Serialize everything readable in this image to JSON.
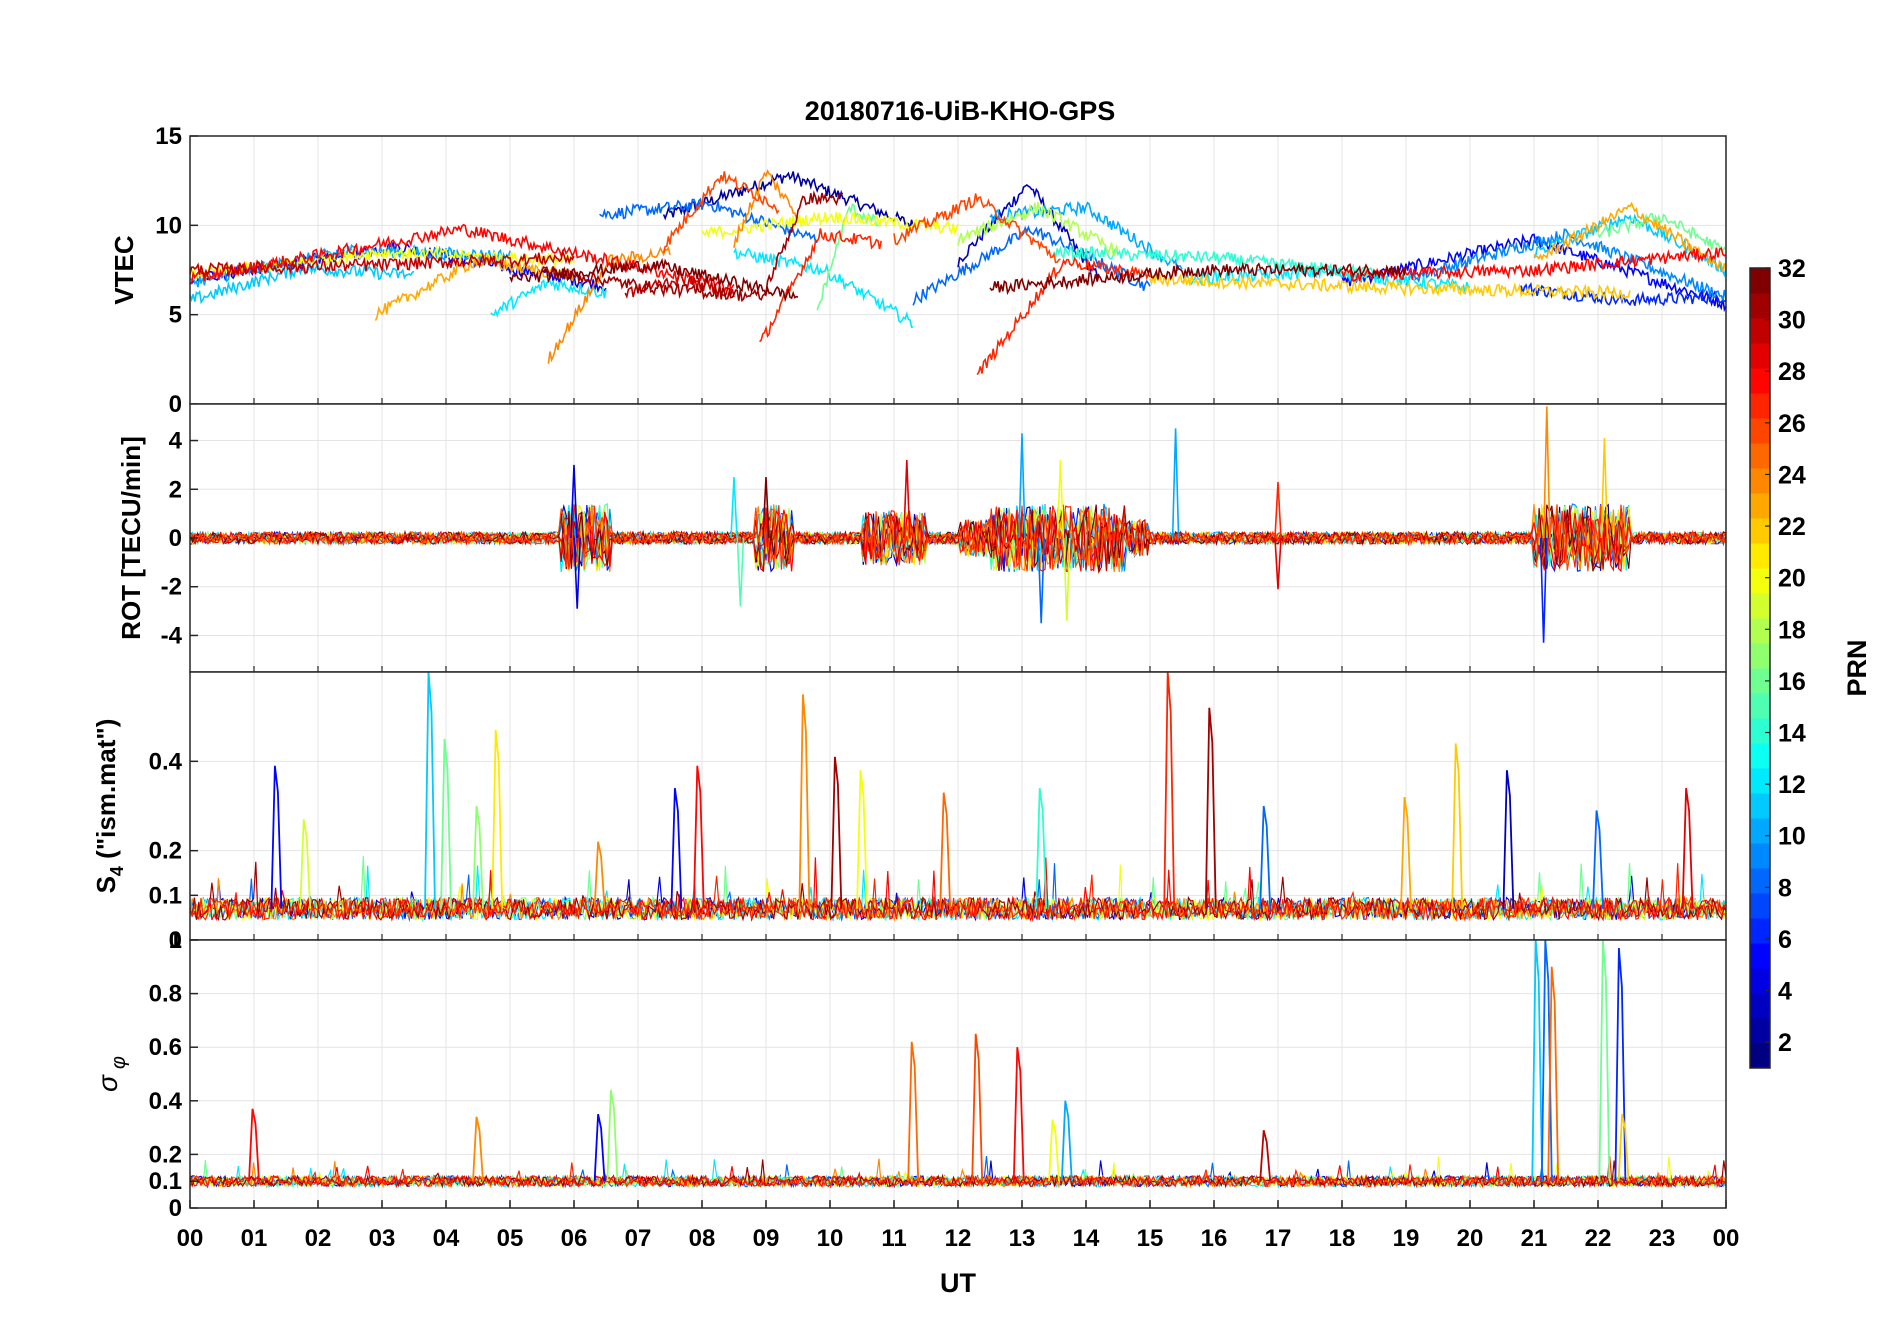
{
  "chart_data": {
    "type": "line",
    "title": "20180716-UiB-KHO-GPS",
    "xlabel": "UT",
    "x_range": [
      0,
      24
    ],
    "x_tick_labels": [
      "00",
      "01",
      "02",
      "03",
      "04",
      "05",
      "06",
      "07",
      "08",
      "09",
      "10",
      "11",
      "12",
      "13",
      "14",
      "15",
      "16",
      "17",
      "18",
      "19",
      "20",
      "21",
      "22",
      "23",
      "00"
    ],
    "grid": true,
    "colorbar": {
      "label": "PRN",
      "range": [
        1,
        32
      ],
      "tick_labels": [
        "2",
        "4",
        "6",
        "8",
        "10",
        "12",
        "14",
        "16",
        "18",
        "20",
        "22",
        "24",
        "26",
        "28",
        "30",
        "32"
      ],
      "colormap": "jet",
      "levels": 32
    },
    "panels": [
      {
        "name": "vtec",
        "ylabel": "VTEC",
        "ylim": [
          0,
          15
        ],
        "y_tick_labels": [
          "0",
          "5",
          "10",
          "15"
        ],
        "baseline": 7.2,
        "series": [
          {
            "prn": 2,
            "segments": [
              [
                7.4,
                11.3,
                10.5,
                12.8,
                10.0
              ]
            ]
          },
          {
            "prn": 3,
            "segments": [
              [
                12.0,
                14.2,
                8.0,
                12.3,
                7.0
              ]
            ]
          },
          {
            "prn": 5,
            "segments": [
              [
                0.0,
                6.5,
                7.0,
                8.8,
                6.6
              ],
              [
                18.0,
                24.0,
                6.8,
                9.2,
                5.6
              ]
            ]
          },
          {
            "prn": 6,
            "segments": [
              [
                20.8,
                24.0,
                6.5,
                5.8,
                6.0
              ]
            ]
          },
          {
            "prn": 8,
            "segments": [
              [
                6.4,
                9.8,
                10.6,
                11.2,
                9.2
              ],
              [
                11.3,
                15.0,
                5.8,
                9.8,
                6.5
              ]
            ]
          },
          {
            "prn": 9,
            "segments": [
              [
                19.0,
                24.0,
                7.0,
                9.5,
                6.0
              ]
            ]
          },
          {
            "prn": 10,
            "segments": [
              [
                0.0,
                5.0,
                6.8,
                8.6,
                8.3
              ],
              [
                12.5,
                15.5,
                10.5,
                11.0,
                7.5
              ]
            ]
          },
          {
            "prn": 11,
            "segments": [
              [
                0.0,
                3.5,
                5.8,
                7.6,
                7.2
              ],
              [
                21.0,
                24.0,
                8.5,
                10.5,
                7.5
              ]
            ]
          },
          {
            "prn": 12,
            "segments": [
              [
                4.7,
                6.5,
                5.0,
                6.8,
                6.2
              ],
              [
                8.5,
                11.3,
                8.5,
                7.5,
                4.5
              ],
              [
                15.5,
                20.0,
                7.0,
                7.4,
                6.5
              ]
            ]
          },
          {
            "prn": 14,
            "segments": [
              [
                13.5,
                18.5,
                8.5,
                8.2,
                7.3
              ]
            ]
          },
          {
            "prn": 16,
            "segments": [
              [
                9.8,
                10.8,
                5.2,
                11.0,
                10.0
              ],
              [
                22.0,
                24.0,
                9.5,
                10.5,
                8.5
              ]
            ]
          },
          {
            "prn": 18,
            "segments": [
              [
                12.0,
                14.5,
                9.2,
                11.0,
                8.5
              ]
            ]
          },
          {
            "prn": 20,
            "segments": [
              [
                0.0,
                6.0,
                7.2,
                8.5,
                8.0
              ],
              [
                8.0,
                12.0,
                9.5,
                10.5,
                9.8
              ]
            ]
          },
          {
            "prn": 22,
            "segments": [
              [
                15.0,
                22.5,
                7.0,
                6.5,
                6.2
              ]
            ]
          },
          {
            "prn": 23,
            "segments": [
              [
                2.9,
                6.0,
                5.0,
                8.0,
                7.2
              ],
              [
                21.0,
                24.0,
                8.0,
                11.0,
                7.5
              ]
            ]
          },
          {
            "prn": 24,
            "segments": [
              [
                5.6,
                7.5,
                2.5,
                8.0,
                8.5
              ],
              [
                8.5,
                9.5,
                9.0,
                13.0,
                10.5
              ]
            ]
          },
          {
            "prn": 26,
            "segments": [
              [
                7.4,
                9.2,
                8.8,
                12.8,
                11.0
              ],
              [
                11.0,
                13.6,
                9.2,
                11.5,
                8.0
              ]
            ]
          },
          {
            "prn": 27,
            "segments": [
              [
                8.9,
                10.8,
                3.3,
                9.5,
                9.0
              ],
              [
                12.3,
                15.0,
                1.6,
                8.0,
                7.2
              ]
            ]
          },
          {
            "prn": 28,
            "segments": [
              [
                0.0,
                8.5,
                7.0,
                9.8,
                6.5
              ],
              [
                18.0,
                24.0,
                7.2,
                7.5,
                8.5
              ]
            ]
          },
          {
            "prn": 30,
            "segments": [
              [
                0.0,
                6.0,
                7.5,
                7.8,
                8.2
              ],
              [
                6.8,
                8.5,
                6.2,
                7.0,
                6.2
              ]
            ]
          },
          {
            "prn": 31,
            "segments": [
              [
                5.5,
                9.0,
                7.5,
                6.5,
                6.0
              ],
              [
                9.0,
                10.2,
                6.5,
                11.5,
                11.5
              ]
            ]
          },
          {
            "prn": 32,
            "segments": [
              [
                5.0,
                9.5,
                7.0,
                7.8,
                6.0
              ],
              [
                12.5,
                19.0,
                6.5,
                7.5,
                7.5
              ]
            ]
          }
        ]
      },
      {
        "name": "rot",
        "ylabel": "ROT [TECU/min]",
        "ylim": [
          -5.5,
          5.5
        ],
        "y_tick_labels": [
          "-4",
          "-2",
          "0",
          "2",
          "4"
        ],
        "baseline": 0,
        "active_intervals": [
          [
            5.8,
            6.6,
            1.0
          ],
          [
            8.8,
            9.4,
            1.0
          ],
          [
            12.5,
            14.6,
            1.0
          ],
          [
            21.0,
            22.5,
            1.0
          ],
          [
            10.5,
            11.5,
            0.8
          ]
        ],
        "spikes": [
          {
            "prn": 4,
            "x": 6.0,
            "y": 3.0
          },
          {
            "prn": 4,
            "x": 6.05,
            "y": -2.9
          },
          {
            "prn": 24,
            "x": 21.2,
            "y": 5.4
          },
          {
            "prn": 6,
            "x": 21.15,
            "y": -4.3
          },
          {
            "prn": 22,
            "x": 22.1,
            "y": 4.1
          },
          {
            "prn": 10,
            "x": 13.0,
            "y": 4.3
          },
          {
            "prn": 10,
            "x": 15.4,
            "y": 4.5
          },
          {
            "prn": 8,
            "x": 13.3,
            "y": -3.5
          },
          {
            "prn": 20,
            "x": 13.6,
            "y": 3.2
          },
          {
            "prn": 19,
            "x": 13.7,
            "y": -3.4
          },
          {
            "prn": 29,
            "x": 11.2,
            "y": 3.2
          },
          {
            "prn": 29,
            "x": 17.0,
            "y": -2.1
          },
          {
            "prn": 15,
            "x": 8.6,
            "y": -2.8
          },
          {
            "prn": 12,
            "x": 8.5,
            "y": 2.5
          },
          {
            "prn": 32,
            "x": 9.0,
            "y": 2.5
          },
          {
            "prn": 27,
            "x": 17.0,
            "y": 2.3
          }
        ]
      },
      {
        "name": "s4",
        "ylabel": "S4 (\"ism.mat\")",
        "ylabel_main": "S",
        "ylabel_sub": "4",
        "ylabel_rest": " (\"ism.mat\")",
        "ylim": [
          0,
          0.6
        ],
        "y_tick_labels": [
          "0",
          "0.1",
          "0.2",
          "0.4"
        ],
        "y_tick_values": [
          0,
          0.1,
          0.2,
          0.4
        ],
        "baseline": 0.07,
        "peaks": [
          {
            "prn": 5,
            "x": 1.35,
            "y": 0.39
          },
          {
            "prn": 19,
            "x": 1.8,
            "y": 0.27
          },
          {
            "prn": 11,
            "x": 3.75,
            "y": 0.6
          },
          {
            "prn": 16,
            "x": 4.0,
            "y": 0.45
          },
          {
            "prn": 17,
            "x": 4.5,
            "y": 0.3
          },
          {
            "prn": 21,
            "x": 4.8,
            "y": 0.47
          },
          {
            "prn": 24,
            "x": 6.4,
            "y": 0.22
          },
          {
            "prn": 5,
            "x": 7.6,
            "y": 0.34
          },
          {
            "prn": 28,
            "x": 7.95,
            "y": 0.39
          },
          {
            "prn": 24,
            "x": 9.6,
            "y": 0.55
          },
          {
            "prn": 31,
            "x": 10.1,
            "y": 0.41
          },
          {
            "prn": 20,
            "x": 10.5,
            "y": 0.38
          },
          {
            "prn": 25,
            "x": 11.8,
            "y": 0.33
          },
          {
            "prn": 14,
            "x": 13.3,
            "y": 0.34
          },
          {
            "prn": 27,
            "x": 15.3,
            "y": 0.6
          },
          {
            "prn": 31,
            "x": 15.95,
            "y": 0.52
          },
          {
            "prn": 8,
            "x": 16.8,
            "y": 0.3
          },
          {
            "prn": 22,
            "x": 19.8,
            "y": 0.44
          },
          {
            "prn": 3,
            "x": 20.6,
            "y": 0.38
          },
          {
            "prn": 23,
            "x": 19.0,
            "y": 0.32
          },
          {
            "prn": 29,
            "x": 23.4,
            "y": 0.34
          },
          {
            "prn": 8,
            "x": 22.0,
            "y": 0.29
          }
        ]
      },
      {
        "name": "sigma_phi",
        "ylabel": "σφ",
        "ylabel_main": "σ",
        "ylabel_sub": "φ",
        "ylim": [
          0,
          1
        ],
        "y_tick_labels": [
          "0",
          "0.1",
          "0.2",
          "0.4",
          "0.6",
          "0.8",
          "1"
        ],
        "y_tick_values": [
          0,
          0.1,
          0.2,
          0.4,
          0.6,
          0.8,
          1
        ],
        "baseline": 0.1,
        "peaks": [
          {
            "prn": 28,
            "x": 1.0,
            "y": 0.37
          },
          {
            "prn": 24,
            "x": 4.5,
            "y": 0.34
          },
          {
            "prn": 5,
            "x": 6.4,
            "y": 0.35
          },
          {
            "prn": 17,
            "x": 6.6,
            "y": 0.44
          },
          {
            "prn": 25,
            "x": 11.3,
            "y": 0.62
          },
          {
            "prn": 26,
            "x": 12.3,
            "y": 0.65
          },
          {
            "prn": 28,
            "x": 12.95,
            "y": 0.6
          },
          {
            "prn": 10,
            "x": 13.7,
            "y": 0.4
          },
          {
            "prn": 20,
            "x": 13.5,
            "y": 0.33
          },
          {
            "prn": 11,
            "x": 21.05,
            "y": 1.0
          },
          {
            "prn": 8,
            "x": 21.2,
            "y": 1.0
          },
          {
            "prn": 25,
            "x": 21.3,
            "y": 0.9
          },
          {
            "prn": 16,
            "x": 22.1,
            "y": 1.0
          },
          {
            "prn": 6,
            "x": 22.35,
            "y": 0.97
          },
          {
            "prn": 22,
            "x": 22.4,
            "y": 0.35
          },
          {
            "prn": 30,
            "x": 16.8,
            "y": 0.29
          }
        ]
      }
    ]
  }
}
